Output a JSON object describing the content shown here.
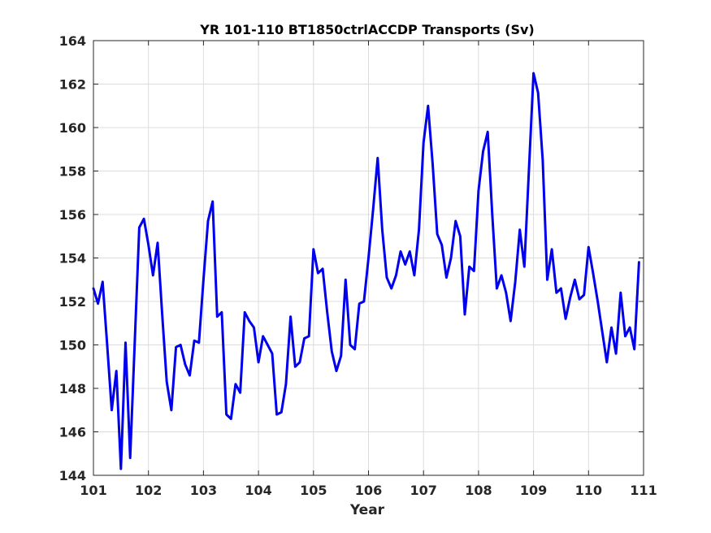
{
  "chart_data": {
    "type": "line",
    "title": "YR 101-110 BT1850ctrlACCDP Transports (Sv)",
    "xlabel": "Year",
    "ylabel": "",
    "xlim": [
      101,
      111
    ],
    "ylim": [
      144,
      164
    ],
    "xticks": [
      "101",
      "102",
      "103",
      "104",
      "105",
      "106",
      "107",
      "108",
      "109",
      "110",
      "111"
    ],
    "yticks": [
      "144",
      "146",
      "148",
      "150",
      "152",
      "154",
      "156",
      "158",
      "160",
      "162",
      "164"
    ],
    "grid": true,
    "colors": {
      "series": "#0000ee",
      "grid": "#dcdcdc",
      "axis": "#262626"
    },
    "series": [
      {
        "x": [
          101.0,
          101.083,
          101.167,
          101.25,
          101.333,
          101.417,
          101.5,
          101.583,
          101.667,
          101.75,
          101.833,
          101.917,
          102.0,
          102.083,
          102.167,
          102.25,
          102.333,
          102.417,
          102.5,
          102.583,
          102.667,
          102.75,
          102.833,
          102.917,
          103.0,
          103.083,
          103.167,
          103.25,
          103.333,
          103.417,
          103.5,
          103.583,
          103.667,
          103.75,
          103.833,
          103.917,
          104.0,
          104.083,
          104.167,
          104.25,
          104.333,
          104.417,
          104.5,
          104.583,
          104.667,
          104.75,
          104.833,
          104.917,
          105.0,
          105.083,
          105.167,
          105.25,
          105.333,
          105.417,
          105.5,
          105.583,
          105.667,
          105.75,
          105.833,
          105.917,
          106.0,
          106.083,
          106.167,
          106.25,
          106.333,
          106.417,
          106.5,
          106.583,
          106.667,
          106.75,
          106.833,
          106.917,
          107.0,
          107.083,
          107.167,
          107.25,
          107.333,
          107.417,
          107.5,
          107.583,
          107.667,
          107.75,
          107.833,
          107.917,
          108.0,
          108.083,
          108.167,
          108.25,
          108.333,
          108.417,
          108.5,
          108.583,
          108.667,
          108.75,
          108.833,
          108.917,
          109.0,
          109.083,
          109.167,
          109.25,
          109.333,
          109.417,
          109.5,
          109.583,
          109.667,
          109.75,
          109.833,
          109.917,
          110.0,
          110.083,
          110.167,
          110.25,
          110.333,
          110.417,
          110.5,
          110.583,
          110.667,
          110.75,
          110.833,
          110.917
        ],
        "y": [
          152.6,
          151.9,
          152.9,
          150.0,
          147.0,
          148.8,
          144.3,
          150.1,
          144.8,
          150.1,
          155.4,
          155.8,
          154.6,
          153.2,
          154.7,
          151.4,
          148.3,
          147.0,
          149.9,
          150.0,
          149.1,
          148.6,
          150.2,
          150.1,
          153.0,
          155.7,
          156.6,
          151.3,
          151.5,
          146.8,
          146.6,
          148.2,
          147.8,
          151.5,
          151.1,
          150.8,
          149.2,
          150.4,
          150.0,
          149.6,
          146.8,
          146.9,
          148.2,
          151.3,
          149.0,
          149.2,
          150.3,
          150.4,
          154.4,
          153.3,
          153.5,
          151.5,
          149.7,
          148.8,
          149.5,
          153.0,
          150.0,
          149.8,
          151.9,
          152.0,
          154.0,
          156.2,
          158.6,
          155.3,
          153.1,
          152.6,
          153.2,
          154.3,
          153.7,
          154.3,
          153.2,
          155.3,
          159.3,
          161.0,
          158.3,
          155.1,
          154.6,
          153.1,
          154.0,
          155.7,
          155.0,
          151.4,
          153.6,
          153.4,
          157.1,
          158.9,
          159.8,
          156.0,
          152.6,
          153.2,
          152.4,
          151.1,
          152.9,
          155.3,
          153.6,
          158.1,
          162.5,
          161.6,
          158.5,
          153.0,
          154.4,
          152.4,
          152.6,
          151.2,
          152.2,
          153.0,
          152.1,
          152.3,
          154.5,
          153.3,
          152.0,
          150.6,
          149.2,
          150.8,
          149.6,
          152.4,
          150.4,
          150.8,
          149.8,
          153.8
        ]
      }
    ]
  }
}
